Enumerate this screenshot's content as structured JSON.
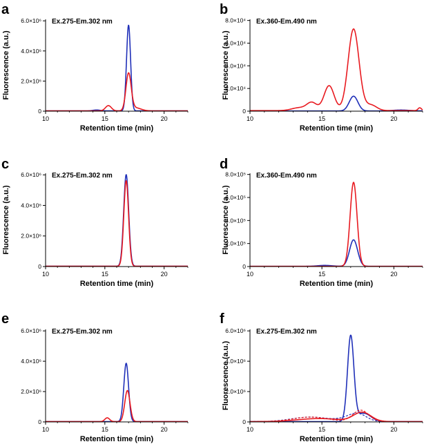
{
  "figure": {
    "colors": {
      "blue": "#1f2fb8",
      "red": "#e8191f",
      "axis": "#000000"
    }
  },
  "chart_data": [
    {
      "panel": "a",
      "type": "line",
      "annotation": "Ex.275-Em.302 nm",
      "xlabel": "Retention time (min)",
      "ylabel": "Fluorescence (a.u.)",
      "xlim": [
        10,
        22
      ],
      "ylim": [
        0,
        6.1
      ],
      "xticks": [
        "10",
        "15",
        "20"
      ],
      "yticks": [
        "0",
        "2.0×10⁶",
        "4.0×10⁶",
        "6.0×10⁶"
      ],
      "series": [
        {
          "name": "blue",
          "color": "#1f2fb8",
          "dashed": false,
          "peaks": [
            [
              14.3,
              0.06,
              0.3
            ],
            [
              17.0,
              5.7,
              0.17
            ]
          ],
          "baseline": 0.02,
          "tail": 0
        },
        {
          "name": "red",
          "color": "#e8191f",
          "dashed": false,
          "peaks": [
            [
              15.3,
              0.35,
              0.25
            ],
            [
              17.0,
              2.45,
              0.22
            ],
            [
              17.6,
              0.2,
              0.45
            ]
          ],
          "baseline": 0.02,
          "tail": 0
        }
      ]
    },
    {
      "panel": "b",
      "type": "line",
      "annotation": "Ex.360-Em.490 nm",
      "xlabel": "Retention time (min)",
      "ylabel": "Fluorescence (a.u.)",
      "xlim": [
        10,
        22
      ],
      "ylim": [
        0,
        8.1
      ],
      "xticks": [
        "10",
        "15",
        "20"
      ],
      "yticks": [
        "0",
        "2.0×10⁴",
        "4.0×10⁴",
        "6.0×10⁴",
        "8.0×10⁴"
      ],
      "series": [
        {
          "name": "blue",
          "color": "#1f2fb8",
          "dashed": false,
          "peaks": [
            [
              17.2,
              1.3,
              0.3
            ],
            [
              20.5,
              0.08,
              0.6
            ]
          ],
          "baseline": 0.02,
          "tail": 0
        },
        {
          "name": "red",
          "color": "#e8191f",
          "dashed": false,
          "peaks": [
            [
              13.4,
              0.25,
              0.5
            ],
            [
              14.3,
              0.7,
              0.35
            ],
            [
              15.5,
              2.2,
              0.35
            ],
            [
              17.2,
              7.2,
              0.38
            ],
            [
              18.4,
              0.5,
              0.4
            ],
            [
              21.8,
              0.25,
              0.12
            ]
          ],
          "baseline": 0.05,
          "tail": 0
        }
      ]
    },
    {
      "panel": "c",
      "type": "line",
      "annotation": "Ex.275-Em.302 nm",
      "xlabel": "Retention time (min)",
      "ylabel": "Fluorescence (a.u.)",
      "xlim": [
        10,
        22
      ],
      "ylim": [
        0,
        6.1
      ],
      "xticks": [
        "10",
        "15",
        "20"
      ],
      "yticks": [
        "0",
        "2.0×10⁶",
        "4.0×10⁶",
        "6.0×10⁶"
      ],
      "series": [
        {
          "name": "blue",
          "color": "#1f2fb8",
          "dashed": false,
          "peaks": [
            [
              16.8,
              6.0,
              0.21
            ]
          ],
          "baseline": 0.02,
          "tail": 0
        },
        {
          "name": "red",
          "color": "#e8191f",
          "dashed": false,
          "peaks": [
            [
              16.8,
              5.6,
              0.2
            ]
          ],
          "baseline": 0.02,
          "tail": 0
        }
      ]
    },
    {
      "panel": "d",
      "type": "line",
      "annotation": "Ex.360-Em.490 nm",
      "xlabel": "Retention time (min)",
      "ylabel": "Fluorescence (a.u.)",
      "xlim": [
        10,
        22
      ],
      "ylim": [
        0,
        8.1
      ],
      "xticks": [
        "10",
        "15",
        "20"
      ],
      "yticks": [
        "0",
        "2.0×10⁵",
        "4.0×10⁵",
        "6.0×10⁵",
        "8.0×10⁵"
      ],
      "series": [
        {
          "name": "blue",
          "color": "#1f2fb8",
          "dashed": false,
          "peaks": [
            [
              15.2,
              0.08,
              0.5
            ],
            [
              17.2,
              2.3,
              0.28
            ]
          ],
          "baseline": 0.02,
          "tail": 0
        },
        {
          "name": "red",
          "color": "#e8191f",
          "dashed": false,
          "peaks": [
            [
              17.2,
              7.3,
              0.24
            ]
          ],
          "baseline": 0.02,
          "tail": 0
        }
      ]
    },
    {
      "panel": "e",
      "type": "line",
      "annotation": "Ex.275-Em.302 nm",
      "xlabel": "Retention time (min)",
      "ylabel": "",
      "xlim": [
        10,
        22
      ],
      "ylim": [
        0,
        6.1
      ],
      "xticks": [
        "10",
        "15",
        "20"
      ],
      "yticks": [
        "0",
        "2.0×10⁶",
        "4.0×10⁶",
        "6.0×10⁶"
      ],
      "series": [
        {
          "name": "blue",
          "color": "#1f2fb8",
          "dashed": false,
          "peaks": [
            [
              16.8,
              3.85,
              0.2
            ]
          ],
          "baseline": 0.02,
          "tail": 0
        },
        {
          "name": "red",
          "color": "#e8191f",
          "dashed": false,
          "peaks": [
            [
              15.2,
              0.25,
              0.2
            ],
            [
              16.9,
              2.05,
              0.22
            ]
          ],
          "baseline": 0.02,
          "tail": 0
        }
      ]
    },
    {
      "panel": "f",
      "type": "line",
      "annotation": "Ex.275-Em.302 nm",
      "xlabel": "Retention time (min)",
      "ylabel": "Fluorescence (a.u.)",
      "xlim": [
        10,
        22
      ],
      "ylim": [
        0,
        6.1
      ],
      "xticks": [
        "10",
        "15",
        "20"
      ],
      "yticks": [
        "0",
        "2.0×10⁶",
        "4.0×10⁶",
        "6.0×10⁶"
      ],
      "series": [
        {
          "name": "blue",
          "color": "#1f2fb8",
          "dashed": false,
          "peaks": [
            [
              17.0,
              5.6,
              0.22
            ],
            [
              17.9,
              0.55,
              0.5
            ]
          ],
          "baseline": 0.02,
          "tail": 0
        },
        {
          "name": "blue-dashed",
          "color": "#1f2fb8",
          "dashed": true,
          "peaks": [
            [
              14.2,
              0.3,
              1.3
            ],
            [
              16.6,
              0.12,
              0.6
            ],
            [
              17.5,
              0.5,
              0.6
            ]
          ],
          "baseline": 0.02,
          "tail": 0
        },
        {
          "name": "red",
          "color": "#e8191f",
          "dashed": false,
          "peaks": [
            [
              14.8,
              0.2,
              1.5
            ],
            [
              17.8,
              0.6,
              0.6
            ]
          ],
          "baseline": 0.02,
          "tail": 0
        },
        {
          "name": "red-dashed",
          "color": "#e8191f",
          "dashed": true,
          "peaks": [
            [
              14.2,
              0.3,
              1.2
            ],
            [
              17.7,
              0.75,
              0.55
            ]
          ],
          "baseline": 0.02,
          "tail": 0
        }
      ]
    }
  ]
}
